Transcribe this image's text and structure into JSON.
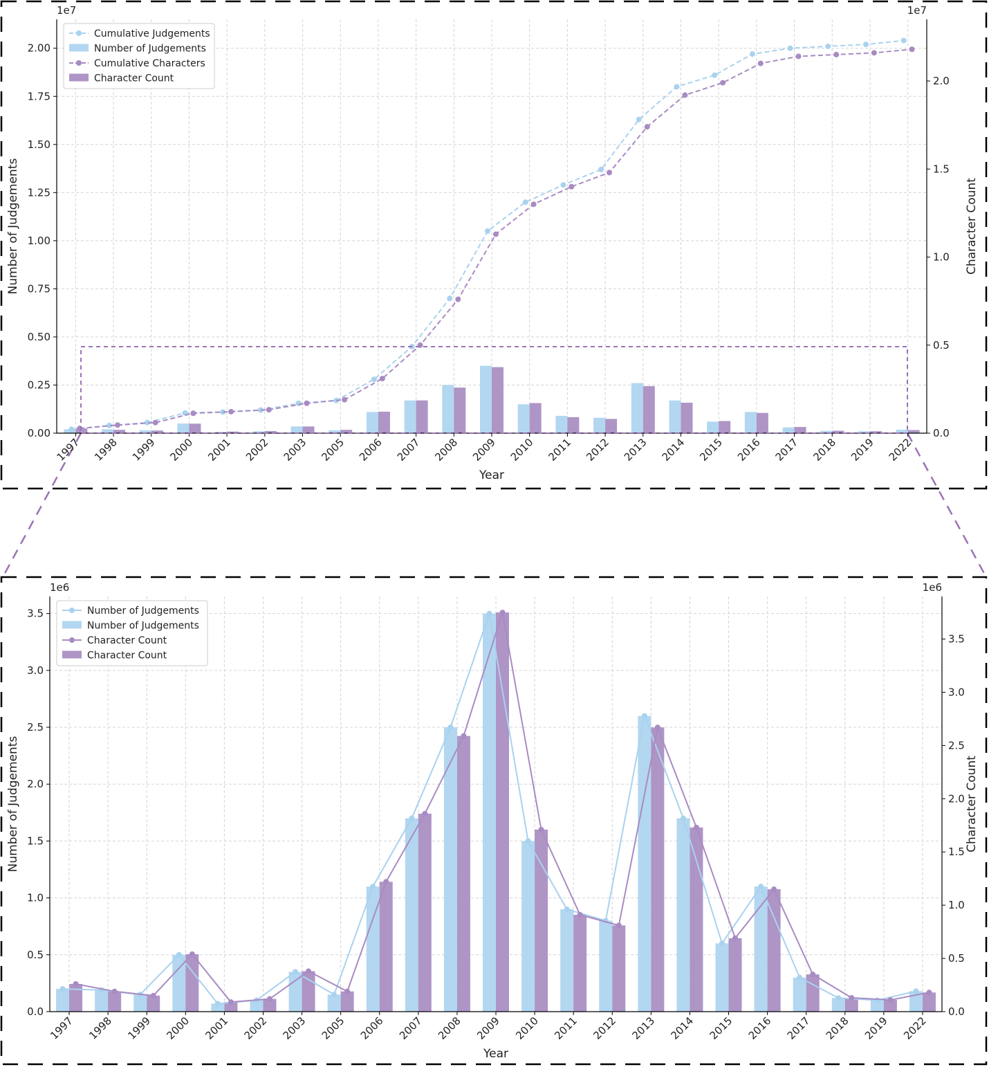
{
  "colors": {
    "blue": "#b3d7f0",
    "blue_line": "#a9d2ee",
    "purple": "#ae95c6",
    "purple_line": "#a88bc2",
    "frame_dash": "#000000",
    "zoom_dash": "#9b73b5"
  },
  "chart_data": [
    {
      "type": "bar",
      "categories": [
        "1997",
        "1998",
        "1999",
        "2000",
        "2001",
        "2002",
        "2003",
        "2005",
        "2006",
        "2007",
        "2008",
        "2009",
        "2010",
        "2011",
        "2012",
        "2013",
        "2014",
        "2015",
        "2016",
        "2017",
        "2018",
        "2019",
        "2022"
      ],
      "xlabel": "Year",
      "ylabel": "Number of Judgements",
      "y2label": "Character Count",
      "y_offset_text": "1e7",
      "y2_offset_text": "1e7",
      "ylim": [
        0,
        2.15
      ],
      "y2lim": [
        0,
        2.35
      ],
      "yticks": [
        "0.00",
        "0.25",
        "0.50",
        "0.75",
        "1.00",
        "1.25",
        "1.50",
        "1.75",
        "2.00"
      ],
      "y2ticks": [
        "0.0",
        "0.5",
        "1.0",
        "1.5",
        "2.0"
      ],
      "grid": true,
      "legend_position": "top-left",
      "series": [
        {
          "name": "Cumulative Judgements",
          "kind": "line-dashed",
          "color": "#a9d2ee",
          "values": [
            0.02,
            0.04,
            0.055,
            0.105,
            0.11,
            0.12,
            0.155,
            0.17,
            0.28,
            0.45,
            0.7,
            1.05,
            1.2,
            1.29,
            1.37,
            1.63,
            1.8,
            1.86,
            1.97,
            2.0,
            2.01,
            2.02,
            2.04
          ]
        },
        {
          "name": "Number of Judgements",
          "kind": "bar",
          "color": "#b3d7f0",
          "values": [
            0.02,
            0.02,
            0.015,
            0.05,
            0.007,
            0.01,
            0.035,
            0.015,
            0.11,
            0.17,
            0.25,
            0.35,
            0.15,
            0.09,
            0.08,
            0.26,
            0.17,
            0.06,
            0.11,
            0.03,
            0.012,
            0.01,
            0.018
          ]
        },
        {
          "name": "Cumulative Characters",
          "kind": "line-dashed",
          "color": "#a88bc2",
          "values": [
            0.027,
            0.046,
            0.06,
            0.113,
            0.122,
            0.133,
            0.17,
            0.19,
            0.31,
            0.5,
            0.76,
            1.13,
            1.3,
            1.4,
            1.48,
            1.74,
            1.92,
            1.99,
            2.1,
            2.14,
            2.15,
            2.16,
            2.18
          ]
        },
        {
          "name": "Character Count",
          "kind": "bar",
          "color": "#ae95c6",
          "values": [
            0.027,
            0.019,
            0.015,
            0.054,
            0.009,
            0.012,
            0.038,
            0.019,
            0.122,
            0.186,
            0.259,
            0.375,
            0.171,
            0.091,
            0.081,
            0.267,
            0.173,
            0.069,
            0.115,
            0.035,
            0.014,
            0.011,
            0.018
          ]
        }
      ]
    },
    {
      "type": "bar",
      "categories": [
        "1997",
        "1998",
        "1999",
        "2000",
        "2001",
        "2002",
        "2003",
        "2005",
        "2006",
        "2007",
        "2008",
        "2009",
        "2010",
        "2011",
        "2012",
        "2013",
        "2014",
        "2015",
        "2016",
        "2017",
        "2018",
        "2019",
        "2022"
      ],
      "xlabel": "Year",
      "ylabel": "Number of Judgements",
      "y2label": "Character Count",
      "y_offset_text": "1e6",
      "y2_offset_text": "1e6",
      "ylim": [
        0,
        3.65
      ],
      "y2lim": [
        0,
        3.9
      ],
      "yticks": [
        "0.0",
        "0.5",
        "1.0",
        "1.5",
        "2.0",
        "2.5",
        "3.0",
        "3.5"
      ],
      "y2ticks": [
        "0.0",
        "0.5",
        "1.0",
        "1.5",
        "2.0",
        "2.5",
        "3.0",
        "3.5"
      ],
      "grid": true,
      "legend_position": "top-left",
      "series": [
        {
          "name": "Number of Judgements",
          "kind": "line",
          "color": "#a9d2ee",
          "values": [
            0.2,
            0.19,
            0.15,
            0.5,
            0.07,
            0.1,
            0.35,
            0.15,
            1.1,
            1.7,
            2.5,
            3.5,
            1.5,
            0.9,
            0.8,
            2.6,
            1.7,
            0.6,
            1.1,
            0.3,
            0.12,
            0.1,
            0.18
          ]
        },
        {
          "name": "Number of Judgements",
          "kind": "bar",
          "color": "#b3d7f0",
          "values": [
            0.2,
            0.19,
            0.15,
            0.5,
            0.07,
            0.1,
            0.35,
            0.15,
            1.1,
            1.7,
            2.5,
            3.5,
            1.5,
            0.9,
            0.8,
            2.6,
            1.7,
            0.6,
            1.1,
            0.3,
            0.12,
            0.1,
            0.18
          ]
        },
        {
          "name": "Character Count",
          "kind": "line",
          "color": "#a88bc2",
          "values": [
            0.26,
            0.19,
            0.15,
            0.54,
            0.09,
            0.12,
            0.38,
            0.19,
            1.22,
            1.86,
            2.59,
            3.75,
            1.71,
            0.91,
            0.81,
            2.67,
            1.73,
            0.69,
            1.15,
            0.35,
            0.13,
            0.11,
            0.18
          ]
        },
        {
          "name": "Character Count",
          "kind": "bar",
          "color": "#ae95c6",
          "values": [
            0.26,
            0.19,
            0.15,
            0.54,
            0.09,
            0.12,
            0.38,
            0.19,
            1.22,
            1.86,
            2.59,
            3.75,
            1.71,
            0.91,
            0.81,
            2.67,
            1.73,
            0.69,
            1.15,
            0.35,
            0.13,
            0.11,
            0.18
          ]
        }
      ]
    }
  ]
}
